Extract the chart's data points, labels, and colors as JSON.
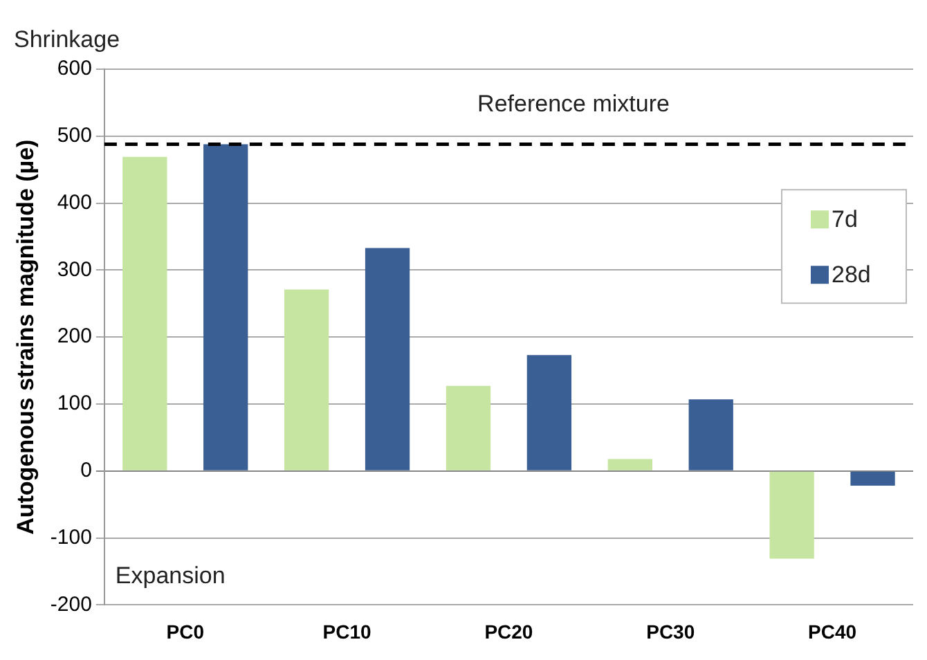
{
  "chart_data": {
    "type": "bar",
    "ylabel": "Autogenous strains magnitude (µe)",
    "categories": [
      "PC0",
      "PC10",
      "PC20",
      "PC30",
      "PC40"
    ],
    "series": [
      {
        "name": "7d",
        "color": "#c6e5a0",
        "values": [
          469,
          271,
          127,
          18,
          -131
        ]
      },
      {
        "name": "28d",
        "color": "#3a5f95",
        "values": [
          488,
          333,
          173,
          107,
          -22
        ]
      }
    ],
    "ylim": [
      -200,
      600
    ],
    "yticks": [
      -200,
      -100,
      0,
      100,
      200,
      300,
      400,
      500,
      600
    ],
    "grid": "y",
    "legend": "top right",
    "ref_lines": [
      {
        "axis": "y",
        "value": 488,
        "label": "Reference mixture",
        "color": "#000000",
        "line_style": "dashed"
      }
    ],
    "annotations": [
      "Shrinkage",
      "Expansion"
    ]
  }
}
